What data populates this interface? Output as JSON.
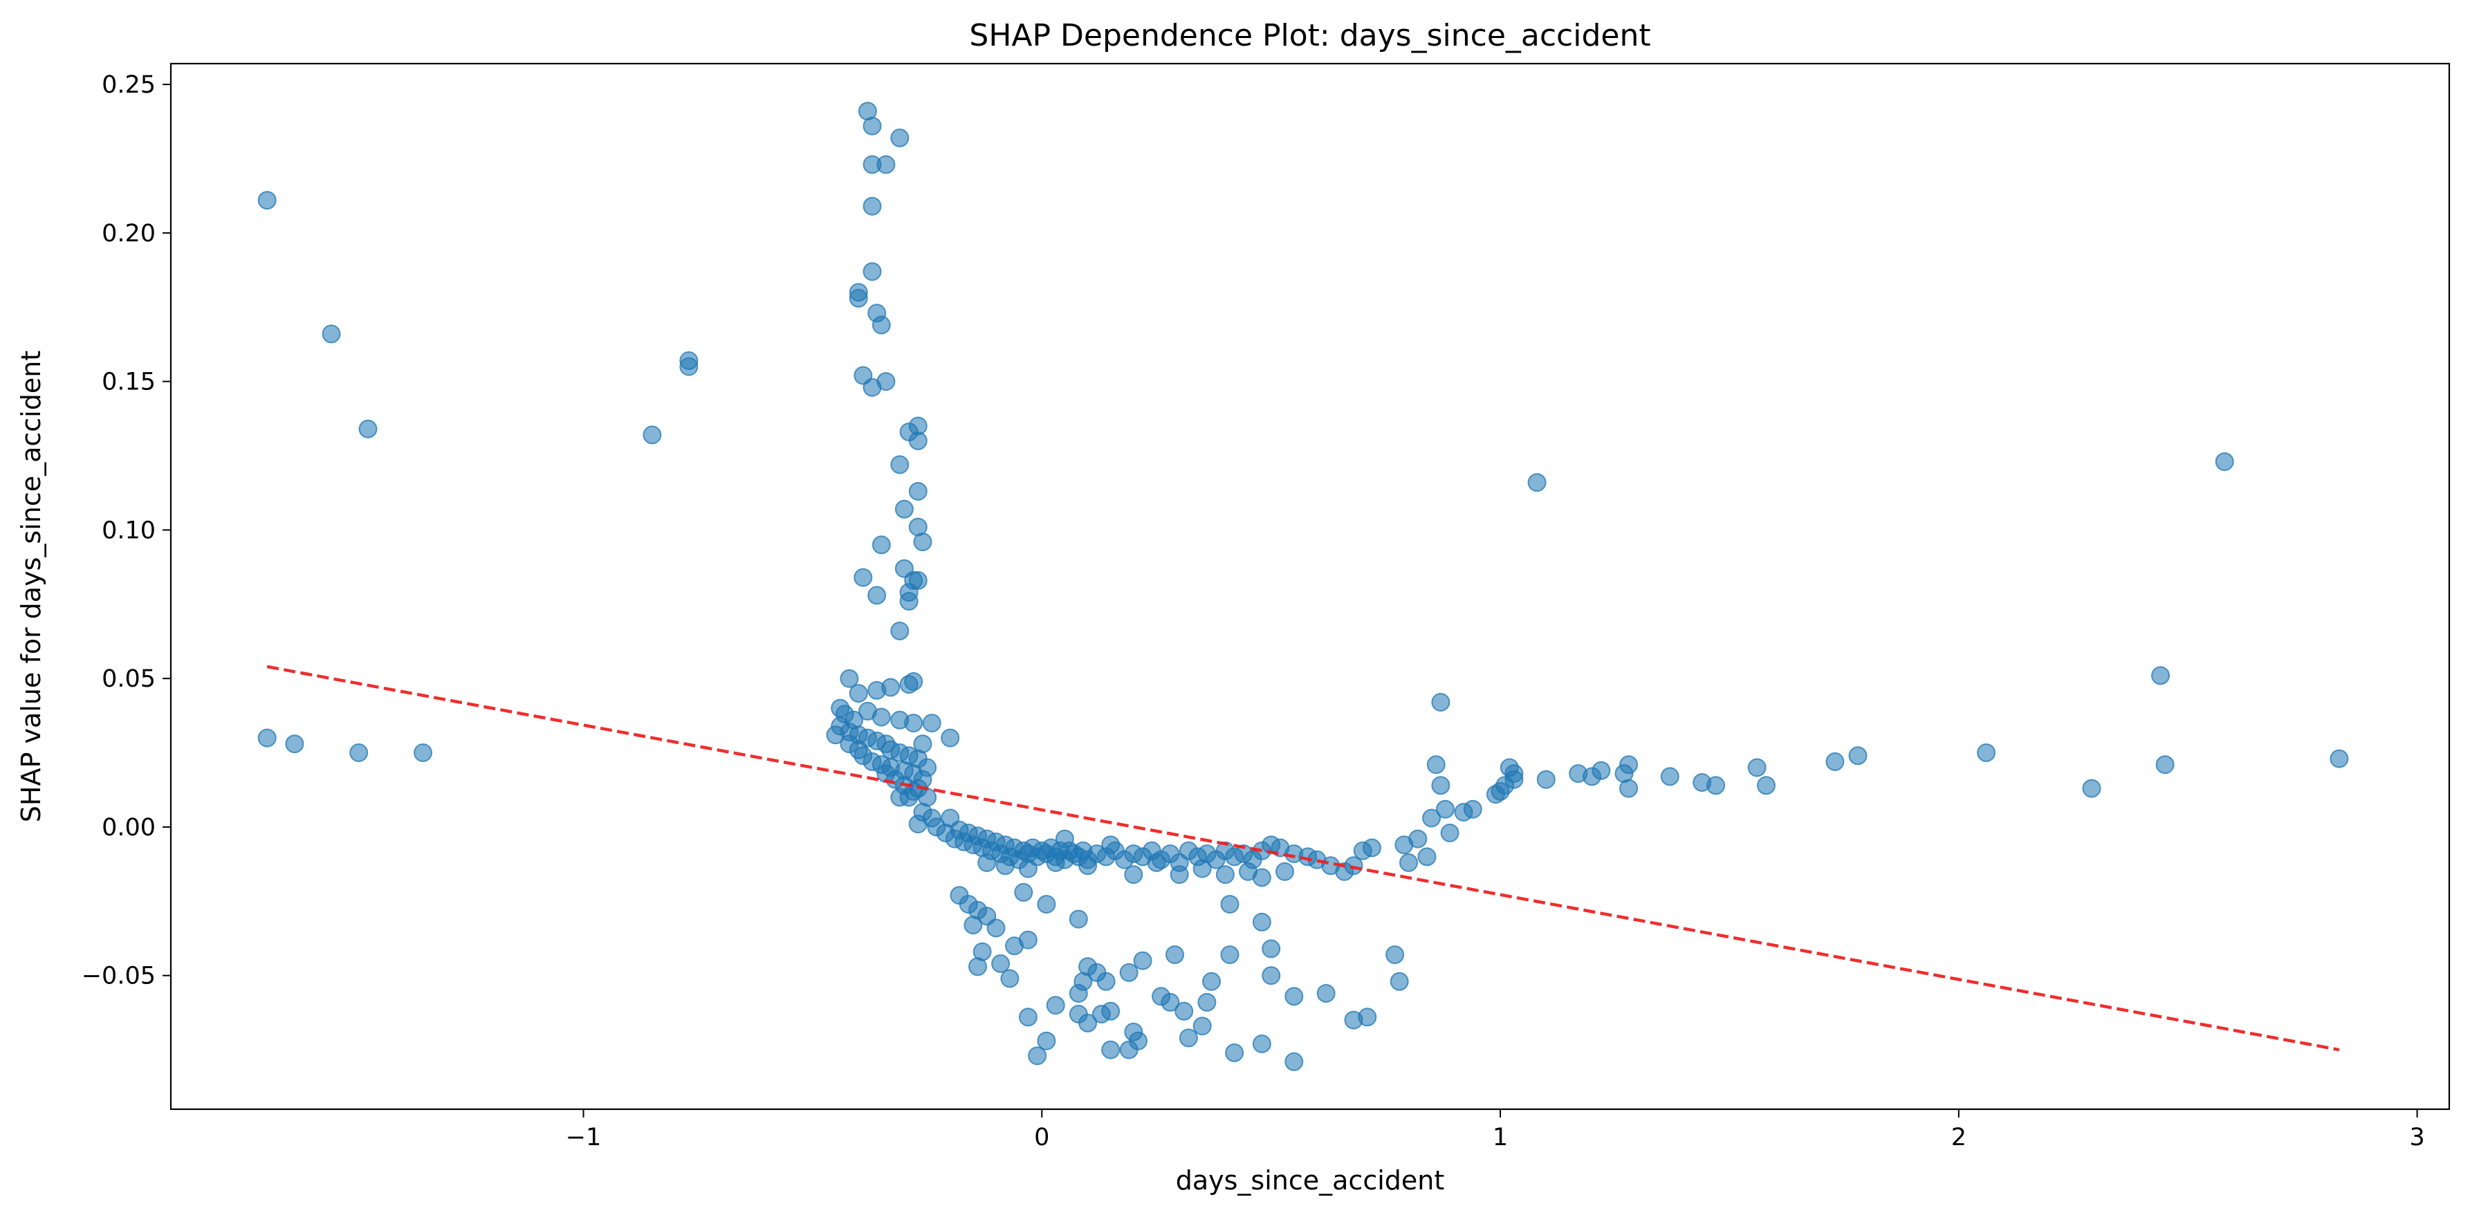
{
  "chart_data": {
    "type": "scatter",
    "title": "SHAP Dependence Plot: days_since_accident",
    "xlabel": "days_since_accident",
    "ylabel": "SHAP value for days_since_accident",
    "xlim": [
      -1.9,
      3.07
    ],
    "ylim": [
      -0.095,
      0.257
    ],
    "xticks": [
      -1,
      0,
      1,
      2,
      3
    ],
    "xtick_labels": [
      "−1",
      "0",
      "1",
      "2",
      "3"
    ],
    "yticks": [
      -0.05,
      0.0,
      0.05,
      0.1,
      0.15,
      0.2,
      0.25
    ],
    "ytick_labels": [
      "−0.05",
      "0.00",
      "0.05",
      "0.10",
      "0.15",
      "0.20",
      "0.25"
    ],
    "grid": false,
    "colors": {
      "points": "#1f77b4",
      "trend": "#ee2222"
    },
    "points": [
      [
        -1.69,
        0.211
      ],
      [
        -1.55,
        0.166
      ],
      [
        -1.47,
        0.134
      ],
      [
        -0.85,
        0.132
      ],
      [
        -0.77,
        0.157
      ],
      [
        -0.77,
        0.155
      ],
      [
        -1.69,
        0.03
      ],
      [
        -1.63,
        0.028
      ],
      [
        -1.49,
        0.025
      ],
      [
        -1.35,
        0.025
      ],
      [
        -0.38,
        0.241
      ],
      [
        -0.37,
        0.236
      ],
      [
        -0.31,
        0.232
      ],
      [
        -0.37,
        0.223
      ],
      [
        -0.34,
        0.223
      ],
      [
        -0.37,
        0.209
      ],
      [
        -0.37,
        0.187
      ],
      [
        -0.4,
        0.18
      ],
      [
        -0.4,
        0.178
      ],
      [
        -0.36,
        0.173
      ],
      [
        -0.35,
        0.169
      ],
      [
        -0.39,
        0.152
      ],
      [
        -0.34,
        0.15
      ],
      [
        -0.37,
        0.148
      ],
      [
        -0.27,
        0.135
      ],
      [
        -0.29,
        0.133
      ],
      [
        -0.27,
        0.13
      ],
      [
        -0.31,
        0.122
      ],
      [
        -0.27,
        0.113
      ],
      [
        -0.3,
        0.107
      ],
      [
        -0.27,
        0.101
      ],
      [
        -0.26,
        0.096
      ],
      [
        -0.35,
        0.095
      ],
      [
        -0.3,
        0.087
      ],
      [
        -0.39,
        0.084
      ],
      [
        -0.28,
        0.083
      ],
      [
        -0.27,
        0.083
      ],
      [
        -0.29,
        0.079
      ],
      [
        -0.36,
        0.078
      ],
      [
        -0.29,
        0.076
      ],
      [
        -0.31,
        0.066
      ],
      [
        -0.42,
        0.05
      ],
      [
        -0.28,
        0.049
      ],
      [
        -0.29,
        0.048
      ],
      [
        -0.33,
        0.047
      ],
      [
        -0.36,
        0.046
      ],
      [
        -0.4,
        0.045
      ],
      [
        -0.44,
        0.04
      ],
      [
        -0.43,
        0.038
      ],
      [
        -0.41,
        0.036
      ],
      [
        -0.38,
        0.039
      ],
      [
        -0.35,
        0.037
      ],
      [
        -0.31,
        0.036
      ],
      [
        -0.28,
        0.035
      ],
      [
        -0.44,
        0.034
      ],
      [
        -0.42,
        0.032
      ],
      [
        -0.4,
        0.031
      ],
      [
        -0.38,
        0.03
      ],
      [
        -0.36,
        0.029
      ],
      [
        -0.34,
        0.028
      ],
      [
        -0.45,
        0.031
      ],
      [
        -0.33,
        0.026
      ],
      [
        -0.31,
        0.025
      ],
      [
        -0.29,
        0.024
      ],
      [
        -0.27,
        0.023
      ],
      [
        -0.42,
        0.028
      ],
      [
        -0.4,
        0.026
      ],
      [
        -0.39,
        0.024
      ],
      [
        -0.37,
        0.022
      ],
      [
        -0.35,
        0.021
      ],
      [
        -0.33,
        0.02
      ],
      [
        -0.3,
        0.019
      ],
      [
        -0.28,
        0.018
      ],
      [
        -0.26,
        0.016
      ],
      [
        -0.34,
        0.018
      ],
      [
        -0.32,
        0.016
      ],
      [
        -0.3,
        0.014
      ],
      [
        -0.28,
        0.012
      ],
      [
        -0.31,
        0.01
      ],
      [
        -0.29,
        0.01
      ],
      [
        -0.27,
        0.013
      ],
      [
        -0.25,
        0.02
      ],
      [
        -0.26,
        0.028
      ],
      [
        -0.24,
        0.035
      ],
      [
        -0.2,
        0.03
      ],
      [
        -0.25,
        0.01
      ],
      [
        -0.26,
        0.005
      ],
      [
        -0.24,
        0.003
      ],
      [
        -0.27,
        0.001
      ],
      [
        -0.23,
        0.0
      ],
      [
        -0.21,
        -0.002
      ],
      [
        -0.2,
        0.003
      ],
      [
        -0.19,
        -0.004
      ],
      [
        -0.18,
        -0.001
      ],
      [
        -0.17,
        -0.005
      ],
      [
        -0.16,
        -0.002
      ],
      [
        -0.15,
        -0.006
      ],
      [
        -0.14,
        -0.003
      ],
      [
        -0.13,
        -0.007
      ],
      [
        -0.12,
        -0.004
      ],
      [
        -0.11,
        -0.008
      ],
      [
        -0.1,
        -0.005
      ],
      [
        -0.09,
        -0.009
      ],
      [
        -0.08,
        -0.006
      ],
      [
        -0.07,
        -0.01
      ],
      [
        -0.06,
        -0.007
      ],
      [
        -0.05,
        -0.011
      ],
      [
        -0.04,
        -0.008
      ],
      [
        -0.03,
        -0.009
      ],
      [
        -0.02,
        -0.007
      ],
      [
        -0.01,
        -0.01
      ],
      [
        0.0,
        -0.008
      ],
      [
        0.01,
        -0.009
      ],
      [
        0.02,
        -0.007
      ],
      [
        0.03,
        -0.01
      ],
      [
        0.04,
        -0.008
      ],
      [
        0.05,
        -0.011
      ],
      [
        0.06,
        -0.008
      ],
      [
        0.07,
        -0.009
      ],
      [
        0.08,
        -0.01
      ],
      [
        0.09,
        -0.008
      ],
      [
        0.1,
        -0.011
      ],
      [
        0.12,
        -0.009
      ],
      [
        0.14,
        -0.01
      ],
      [
        0.16,
        -0.008
      ],
      [
        0.18,
        -0.011
      ],
      [
        0.2,
        -0.009
      ],
      [
        0.22,
        -0.01
      ],
      [
        0.24,
        -0.008
      ],
      [
        0.26,
        -0.011
      ],
      [
        0.28,
        -0.009
      ],
      [
        0.3,
        -0.012
      ],
      [
        0.32,
        -0.008
      ],
      [
        0.34,
        -0.01
      ],
      [
        0.36,
        -0.009
      ],
      [
        0.38,
        -0.011
      ],
      [
        0.4,
        -0.008
      ],
      [
        0.42,
        -0.01
      ],
      [
        0.44,
        -0.009
      ],
      [
        0.46,
        -0.011
      ],
      [
        0.48,
        -0.008
      ],
      [
        0.5,
        -0.006
      ],
      [
        0.52,
        -0.007
      ],
      [
        0.55,
        -0.009
      ],
      [
        0.58,
        -0.01
      ],
      [
        0.6,
        -0.011
      ],
      [
        0.63,
        -0.013
      ],
      [
        0.66,
        -0.015
      ],
      [
        0.68,
        -0.013
      ],
      [
        0.7,
        -0.008
      ],
      [
        0.72,
        -0.007
      ],
      [
        0.05,
        -0.004
      ],
      [
        0.15,
        -0.006
      ],
      [
        0.25,
        -0.012
      ],
      [
        0.35,
        -0.014
      ],
      [
        0.45,
        -0.015
      ],
      [
        0.53,
        -0.015
      ],
      [
        -0.12,
        -0.012
      ],
      [
        -0.08,
        -0.013
      ],
      [
        -0.03,
        -0.014
      ],
      [
        0.03,
        -0.012
      ],
      [
        0.1,
        -0.013
      ],
      [
        0.2,
        -0.016
      ],
      [
        0.3,
        -0.016
      ],
      [
        0.4,
        -0.016
      ],
      [
        0.48,
        -0.017
      ],
      [
        -0.18,
        -0.023
      ],
      [
        -0.16,
        -0.026
      ],
      [
        -0.14,
        -0.028
      ],
      [
        -0.12,
        -0.03
      ],
      [
        -0.15,
        -0.033
      ],
      [
        -0.1,
        -0.034
      ],
      [
        -0.13,
        -0.042
      ],
      [
        -0.09,
        -0.046
      ],
      [
        -0.06,
        -0.04
      ],
      [
        -0.03,
        -0.038
      ],
      [
        -0.14,
        -0.047
      ],
      [
        -0.07,
        -0.051
      ],
      [
        -0.04,
        -0.022
      ],
      [
        0.01,
        -0.026
      ],
      [
        0.08,
        -0.031
      ],
      [
        0.1,
        -0.047
      ],
      [
        0.14,
        -0.052
      ],
      [
        0.12,
        -0.049
      ],
      [
        -0.03,
        -0.064
      ],
      [
        0.03,
        -0.06
      ],
      [
        0.08,
        -0.063
      ],
      [
        0.1,
        -0.066
      ],
      [
        0.13,
        -0.063
      ],
      [
        0.15,
        -0.062
      ],
      [
        -0.01,
        -0.077
      ],
      [
        0.01,
        -0.072
      ],
      [
        0.15,
        -0.075
      ],
      [
        0.19,
        -0.075
      ],
      [
        0.21,
        -0.072
      ],
      [
        0.2,
        -0.069
      ],
      [
        0.08,
        -0.056
      ],
      [
        0.09,
        -0.052
      ],
      [
        0.19,
        -0.049
      ],
      [
        0.22,
        -0.045
      ],
      [
        0.26,
        -0.057
      ],
      [
        0.28,
        -0.059
      ],
      [
        0.29,
        -0.043
      ],
      [
        0.31,
        -0.062
      ],
      [
        0.32,
        -0.071
      ],
      [
        0.35,
        -0.067
      ],
      [
        0.36,
        -0.059
      ],
      [
        0.37,
        -0.052
      ],
      [
        0.41,
        -0.043
      ],
      [
        0.41,
        -0.026
      ],
      [
        0.42,
        -0.076
      ],
      [
        0.48,
        -0.073
      ],
      [
        0.48,
        -0.032
      ],
      [
        0.5,
        -0.041
      ],
      [
        0.5,
        -0.05
      ],
      [
        0.55,
        -0.057
      ],
      [
        0.55,
        -0.079
      ],
      [
        0.62,
        -0.056
      ],
      [
        0.68,
        -0.065
      ],
      [
        0.71,
        -0.064
      ],
      [
        0.77,
        -0.043
      ],
      [
        0.78,
        -0.052
      ],
      [
        0.79,
        -0.006
      ],
      [
        0.8,
        -0.012
      ],
      [
        0.82,
        -0.004
      ],
      [
        0.84,
        -0.01
      ],
      [
        0.85,
        0.003
      ],
      [
        0.86,
        0.021
      ],
      [
        0.87,
        0.042
      ],
      [
        0.87,
        0.014
      ],
      [
        0.88,
        0.006
      ],
      [
        0.89,
        -0.002
      ],
      [
        0.92,
        0.005
      ],
      [
        0.94,
        0.006
      ],
      [
        0.99,
        0.011
      ],
      [
        1.0,
        0.012
      ],
      [
        1.01,
        0.014
      ],
      [
        1.02,
        0.02
      ],
      [
        1.03,
        0.016
      ],
      [
        1.03,
        0.018
      ],
      [
        1.08,
        0.116
      ],
      [
        1.1,
        0.016
      ],
      [
        1.17,
        0.018
      ],
      [
        1.2,
        0.017
      ],
      [
        1.22,
        0.019
      ],
      [
        1.27,
        0.018
      ],
      [
        1.28,
        0.013
      ],
      [
        1.28,
        0.021
      ],
      [
        1.37,
        0.017
      ],
      [
        1.44,
        0.015
      ],
      [
        1.47,
        0.014
      ],
      [
        1.56,
        0.02
      ],
      [
        1.58,
        0.014
      ],
      [
        1.73,
        0.022
      ],
      [
        1.78,
        0.024
      ],
      [
        2.06,
        0.025
      ],
      [
        2.29,
        0.013
      ],
      [
        2.44,
        0.051
      ],
      [
        2.45,
        0.021
      ],
      [
        2.58,
        0.123
      ],
      [
        2.83,
        0.023
      ]
    ],
    "trend_line": {
      "x": [
        -1.69,
        2.83
      ],
      "y": [
        0.054,
        -0.075
      ],
      "style": "dashed"
    }
  }
}
